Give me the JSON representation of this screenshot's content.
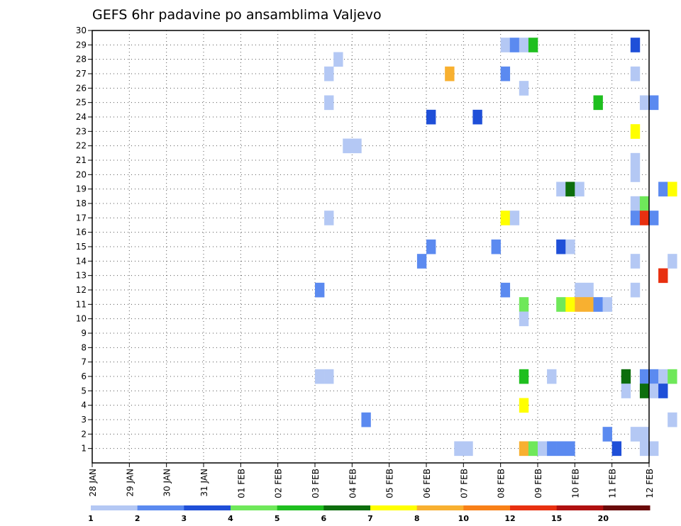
{
  "chart_data": {
    "type": "heatmap",
    "title": "GEFS 6hr padavine po ansamblima Valjevo",
    "xlabel": "",
    "ylabel": "",
    "x_ticks": [
      "28 JAN",
      "29 JAN",
      "30 JAN",
      "31 JAN",
      "01 FEB",
      "02 FEB",
      "03 FEB",
      "04 FEB",
      "05 FEB",
      "06 FEB",
      "07 FEB",
      "08 FEB",
      "09 FEB",
      "10 FEB",
      "11 FEB",
      "12 FEB"
    ],
    "x_range_days": [
      0,
      15
    ],
    "y_ticks": [
      1,
      2,
      3,
      4,
      5,
      6,
      7,
      8,
      9,
      10,
      11,
      12,
      13,
      14,
      15,
      16,
      17,
      18,
      19,
      20,
      21,
      22,
      23,
      24,
      25,
      26,
      27,
      28,
      29,
      30
    ],
    "ylim": [
      0,
      30
    ],
    "grid": true,
    "legend": {
      "placement": "bottom",
      "labels": [
        "1",
        "2",
        "3",
        "4",
        "5",
        "6",
        "7",
        "8",
        "10",
        "12",
        "15",
        "20"
      ],
      "colors": [
        "#b4c8f4",
        "#5b8af0",
        "#1f4fd8",
        "#6fe85a",
        "#1fbf1f",
        "#0d6e0d",
        "#ffff00",
        "#f8b030",
        "#f88018",
        "#e83010",
        "#b01010",
        "#6a0a0a"
      ]
    },
    "cells": [
      {
        "t": "08 FEB 00",
        "member": 29,
        "cat": 1
      },
      {
        "t": "08 FEB 06",
        "member": 29,
        "cat": 2
      },
      {
        "t": "08 FEB 12",
        "member": 29,
        "cat": 1
      },
      {
        "t": "08 FEB 18",
        "member": 29,
        "cat": 5
      },
      {
        "t": "11 FEB 12",
        "member": 29,
        "cat": 3
      },
      {
        "t": "03 FEB 12",
        "member": 28,
        "cat": 1
      },
      {
        "t": "03 FEB 06",
        "member": 27,
        "cat": 1
      },
      {
        "t": "06 FEB 12",
        "member": 27,
        "cat": 8
      },
      {
        "t": "08 FEB 00",
        "member": 27,
        "cat": 2
      },
      {
        "t": "11 FEB 12",
        "member": 27,
        "cat": 1
      },
      {
        "t": "08 FEB 12",
        "member": 26,
        "cat": 1
      },
      {
        "t": "03 FEB 06",
        "member": 25,
        "cat": 1
      },
      {
        "t": "10 FEB 12",
        "member": 25,
        "cat": 5
      },
      {
        "t": "11 FEB 18",
        "member": 25,
        "cat": 1
      },
      {
        "t": "12 FEB 00",
        "member": 25,
        "cat": 2
      },
      {
        "t": "06 FEB 00",
        "member": 24,
        "cat": 3
      },
      {
        "t": "07 FEB 06",
        "member": 24,
        "cat": 3
      },
      {
        "t": "11 FEB 12",
        "member": 23,
        "cat": 7
      },
      {
        "t": "03 FEB 18",
        "member": 22,
        "cat": 1
      },
      {
        "t": "04 FEB 00",
        "member": 22,
        "cat": 1
      },
      {
        "t": "11 FEB 12",
        "member": 21,
        "cat": 1
      },
      {
        "t": "11 FEB 12",
        "member": 20,
        "cat": 1
      },
      {
        "t": "09 FEB 12",
        "member": 19,
        "cat": 1
      },
      {
        "t": "09 FEB 18",
        "member": 19,
        "cat": 6
      },
      {
        "t": "10 FEB 00",
        "member": 19,
        "cat": 1
      },
      {
        "t": "12 FEB 06",
        "member": 19,
        "cat": 2
      },
      {
        "t": "12 FEB 12",
        "member": 19,
        "cat": 7
      },
      {
        "t": "11 FEB 12",
        "member": 18,
        "cat": 1
      },
      {
        "t": "11 FEB 18",
        "member": 18,
        "cat": 4
      },
      {
        "t": "03 FEB 06",
        "member": 17,
        "cat": 1
      },
      {
        "t": "08 FEB 00",
        "member": 17,
        "cat": 7
      },
      {
        "t": "08 FEB 06",
        "member": 17,
        "cat": 1
      },
      {
        "t": "11 FEB 12",
        "member": 17,
        "cat": 2
      },
      {
        "t": "11 FEB 18",
        "member": 17,
        "cat": 10
      },
      {
        "t": "12 FEB 00",
        "member": 17,
        "cat": 2
      },
      {
        "t": "06 FEB 00",
        "member": 15,
        "cat": 2
      },
      {
        "t": "07 FEB 18",
        "member": 15,
        "cat": 2
      },
      {
        "t": "09 FEB 12",
        "member": 15,
        "cat": 3
      },
      {
        "t": "09 FEB 18",
        "member": 15,
        "cat": 1
      },
      {
        "t": "05 FEB 18",
        "member": 14,
        "cat": 2
      },
      {
        "t": "11 FEB 12",
        "member": 14,
        "cat": 1
      },
      {
        "t": "12 FEB 12",
        "member": 14,
        "cat": 1
      },
      {
        "t": "12 FEB 06",
        "member": 13,
        "cat": 10
      },
      {
        "t": "03 FEB 00",
        "member": 12,
        "cat": 2
      },
      {
        "t": "10 FEB 00",
        "member": 12,
        "cat": 1
      },
      {
        "t": "10 FEB 06",
        "member": 12,
        "cat": 1
      },
      {
        "t": "11 FEB 12",
        "member": 12,
        "cat": 1
      },
      {
        "t": "08 FEB 00",
        "member": 12,
        "cat": 2
      },
      {
        "t": "08 FEB 12",
        "member": 11,
        "cat": 4
      },
      {
        "t": "09 FEB 12",
        "member": 11,
        "cat": 4
      },
      {
        "t": "09 FEB 18",
        "member": 11,
        "cat": 7
      },
      {
        "t": "10 FEB 00",
        "member": 11,
        "cat": 8
      },
      {
        "t": "10 FEB 06",
        "member": 11,
        "cat": 8
      },
      {
        "t": "10 FEB 12",
        "member": 11,
        "cat": 2
      },
      {
        "t": "10 FEB 18",
        "member": 11,
        "cat": 1
      },
      {
        "t": "08 FEB 12",
        "member": 10,
        "cat": 1
      },
      {
        "t": "03 FEB 00",
        "member": 6,
        "cat": 1
      },
      {
        "t": "03 FEB 06",
        "member": 6,
        "cat": 1
      },
      {
        "t": "08 FEB 12",
        "member": 6,
        "cat": 5
      },
      {
        "t": "09 FEB 06",
        "member": 6,
        "cat": 1
      },
      {
        "t": "11 FEB 06",
        "member": 6,
        "cat": 6
      },
      {
        "t": "11 FEB 18",
        "member": 6,
        "cat": 2
      },
      {
        "t": "12 FEB 00",
        "member": 6,
        "cat": 2
      },
      {
        "t": "12 FEB 06",
        "member": 6,
        "cat": 1
      },
      {
        "t": "12 FEB 12",
        "member": 6,
        "cat": 4
      },
      {
        "t": "11 FEB 06",
        "member": 5,
        "cat": 1
      },
      {
        "t": "11 FEB 18",
        "member": 5,
        "cat": 6
      },
      {
        "t": "12 FEB 00",
        "member": 5,
        "cat": 1
      },
      {
        "t": "12 FEB 06",
        "member": 5,
        "cat": 3
      },
      {
        "t": "08 FEB 12",
        "member": 4,
        "cat": 7
      },
      {
        "t": "04 FEB 06",
        "member": 3,
        "cat": 2
      },
      {
        "t": "12 FEB 12",
        "member": 3,
        "cat": 1
      },
      {
        "t": "10 FEB 18",
        "member": 2,
        "cat": 2
      },
      {
        "t": "11 FEB 12",
        "member": 2,
        "cat": 1
      },
      {
        "t": "11 FEB 18",
        "member": 2,
        "cat": 1
      },
      {
        "t": "06 FEB 18",
        "member": 1,
        "cat": 1
      },
      {
        "t": "07 FEB 00",
        "member": 1,
        "cat": 1
      },
      {
        "t": "08 FEB 12",
        "member": 1,
        "cat": 8
      },
      {
        "t": "08 FEB 18",
        "member": 1,
        "cat": 4
      },
      {
        "t": "09 FEB 00",
        "member": 1,
        "cat": 1
      },
      {
        "t": "09 FEB 06",
        "member": 1,
        "cat": 2
      },
      {
        "t": "09 FEB 12",
        "member": 1,
        "cat": 2
      },
      {
        "t": "09 FEB 18",
        "member": 1,
        "cat": 2
      },
      {
        "t": "11 FEB 00",
        "member": 1,
        "cat": 3
      },
      {
        "t": "11 FEB 18",
        "member": 1,
        "cat": 1
      },
      {
        "t": "12 FEB 00",
        "member": 1,
        "cat": 1
      }
    ]
  }
}
